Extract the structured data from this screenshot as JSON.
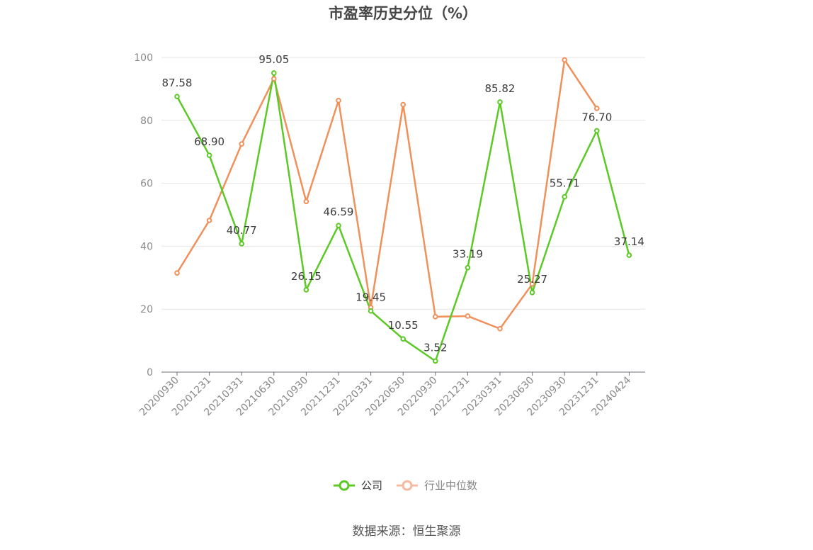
{
  "chart_data": {
    "type": "line",
    "title": "市盈率历史分位（%）",
    "xlabel": "",
    "ylabel": "",
    "ylim": [
      0,
      100
    ],
    "yticks": [
      0,
      20,
      40,
      60,
      80,
      100
    ],
    "grid": true,
    "legend_position": "bottom",
    "categories": [
      "20200930",
      "20201231",
      "20210331",
      "20210630",
      "20210930",
      "20211231",
      "20220331",
      "20220630",
      "20220930",
      "20221231",
      "20230331",
      "20230630",
      "20230930",
      "20231231",
      "20240424"
    ],
    "series": [
      {
        "name": "公司",
        "color": "#5cc926",
        "values": [
          87.58,
          68.9,
          40.77,
          95.05,
          26.15,
          46.59,
          19.45,
          10.55,
          3.52,
          33.19,
          85.82,
          25.27,
          55.71,
          76.7,
          37.14
        ],
        "labels": [
          "87.58",
          "68.90",
          "40.77",
          "95.05",
          "26.15",
          "46.59",
          "19.45",
          "10.55",
          "3.52",
          "33.19",
          "85.82",
          "25.27",
          "55.71",
          "76.70",
          "37.14"
        ]
      },
      {
        "name": "行业中位数",
        "color": "#f0905a",
        "legend_color": "#f7b9a0",
        "values": [
          31.5,
          48.2,
          72.5,
          93.2,
          54.2,
          86.3,
          20.5,
          85.0,
          17.6,
          17.8,
          13.8,
          28.0,
          99.2,
          83.8,
          null
        ]
      }
    ],
    "source": "数据来源：恒生聚源"
  }
}
